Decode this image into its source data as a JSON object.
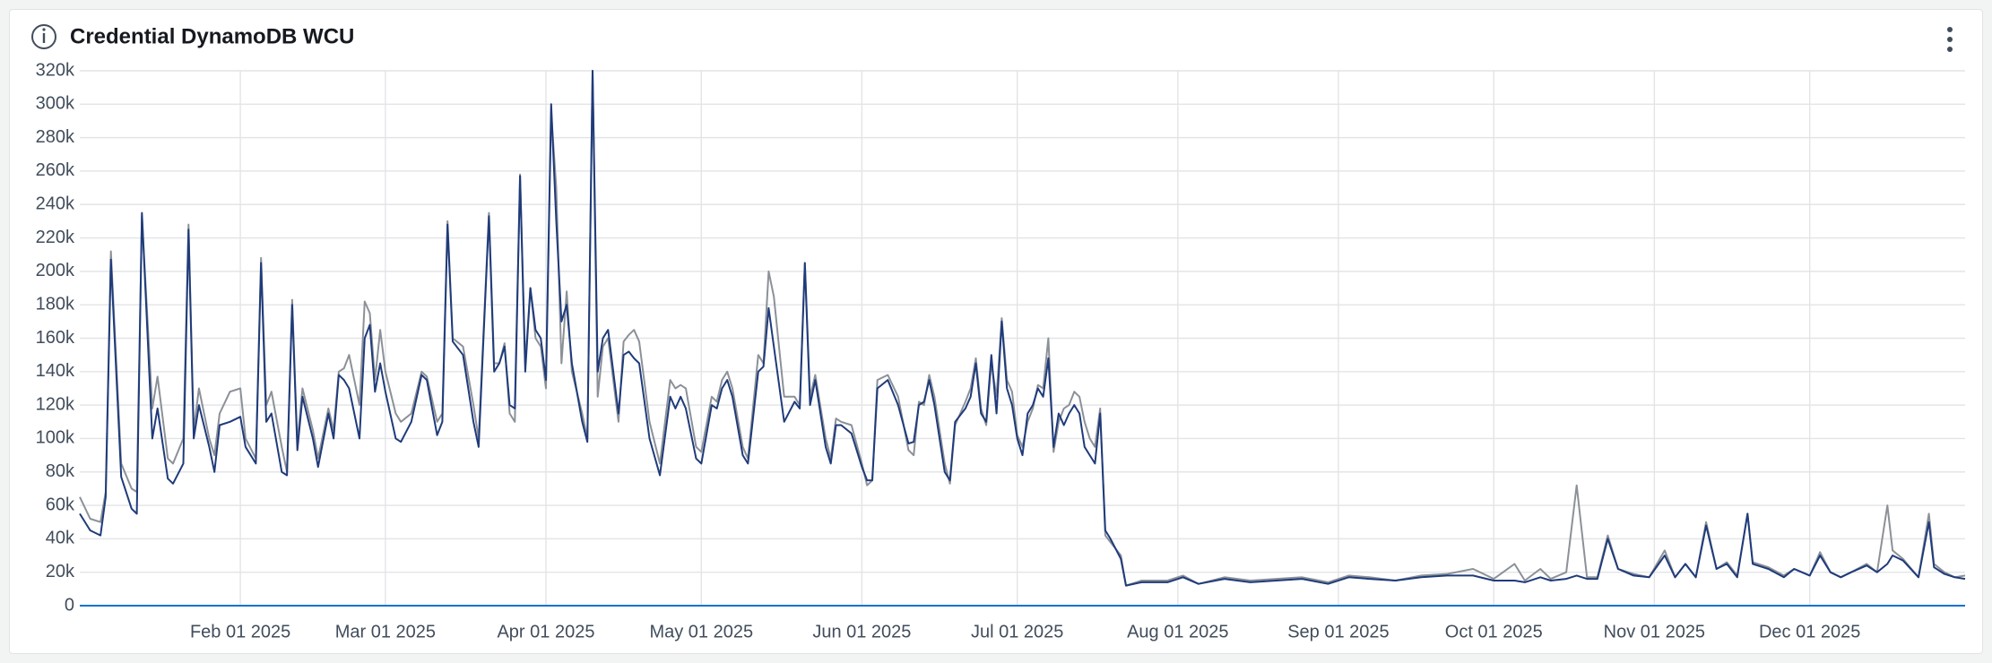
{
  "chart_data": {
    "type": "line",
    "title": "Credential DynamoDB WCU",
    "x": [
      "2025-01-01",
      "2025-01-03",
      "2025-01-05",
      "2025-01-06",
      "2025-01-07",
      "2025-01-09",
      "2025-01-11",
      "2025-01-12",
      "2025-01-13",
      "2025-01-15",
      "2025-01-16",
      "2025-01-18",
      "2025-01-19",
      "2025-01-21",
      "2025-01-22",
      "2025-01-23",
      "2025-01-24",
      "2025-01-26",
      "2025-01-27",
      "2025-01-28",
      "2025-01-30",
      "2025-02-01",
      "2025-02-02",
      "2025-02-04",
      "2025-02-05",
      "2025-02-06",
      "2025-02-07",
      "2025-02-09",
      "2025-02-10",
      "2025-02-11",
      "2025-02-12",
      "2025-02-13",
      "2025-02-15",
      "2025-02-16",
      "2025-02-18",
      "2025-02-19",
      "2025-02-20",
      "2025-02-21",
      "2025-02-22",
      "2025-02-24",
      "2025-02-25",
      "2025-02-26",
      "2025-02-27",
      "2025-02-28",
      "2025-03-01",
      "2025-03-03",
      "2025-03-04",
      "2025-03-06",
      "2025-03-08",
      "2025-03-09",
      "2025-03-11",
      "2025-03-12",
      "2025-03-13",
      "2025-03-14",
      "2025-03-16",
      "2025-03-18",
      "2025-03-19",
      "2025-03-21",
      "2025-03-22",
      "2025-03-23",
      "2025-03-24",
      "2025-03-25",
      "2025-03-26",
      "2025-03-27",
      "2025-03-28",
      "2025-03-29",
      "2025-03-30",
      "2025-03-31",
      "2025-04-01",
      "2025-04-02",
      "2025-04-03",
      "2025-04-04",
      "2025-04-05",
      "2025-04-06",
      "2025-04-08",
      "2025-04-09",
      "2025-04-10",
      "2025-04-11",
      "2025-04-12",
      "2025-04-13",
      "2025-04-14",
      "2025-04-15",
      "2025-04-16",
      "2025-04-17",
      "2025-04-18",
      "2025-04-19",
      "2025-04-21",
      "2025-04-23",
      "2025-04-25",
      "2025-04-26",
      "2025-04-27",
      "2025-04-28",
      "2025-04-30",
      "2025-05-01",
      "2025-05-03",
      "2025-05-04",
      "2025-05-05",
      "2025-05-06",
      "2025-05-07",
      "2025-05-09",
      "2025-05-10",
      "2025-05-12",
      "2025-05-13",
      "2025-05-14",
      "2025-05-15",
      "2025-05-17",
      "2025-05-19",
      "2025-05-20",
      "2025-05-21",
      "2025-05-22",
      "2025-05-23",
      "2025-05-25",
      "2025-05-26",
      "2025-05-27",
      "2025-05-28",
      "2025-05-30",
      "2025-06-01",
      "2025-06-02",
      "2025-06-03",
      "2025-06-04",
      "2025-06-06",
      "2025-06-08",
      "2025-06-10",
      "2025-06-11",
      "2025-06-12",
      "2025-06-13",
      "2025-06-14",
      "2025-06-15",
      "2025-06-17",
      "2025-06-18",
      "2025-06-19",
      "2025-06-21",
      "2025-06-22",
      "2025-06-23",
      "2025-06-24",
      "2025-06-25",
      "2025-06-26",
      "2025-06-27",
      "2025-06-28",
      "2025-06-29",
      "2025-06-30",
      "2025-07-01",
      "2025-07-02",
      "2025-07-03",
      "2025-07-04",
      "2025-07-05",
      "2025-07-06",
      "2025-07-07",
      "2025-07-08",
      "2025-07-09",
      "2025-07-10",
      "2025-07-11",
      "2025-07-12",
      "2025-07-13",
      "2025-07-14",
      "2025-07-15",
      "2025-07-16",
      "2025-07-17",
      "2025-07-18",
      "2025-07-19",
      "2025-07-21",
      "2025-07-22",
      "2025-07-25",
      "2025-07-30",
      "2025-08-02",
      "2025-08-05",
      "2025-08-10",
      "2025-08-15",
      "2025-08-20",
      "2025-08-25",
      "2025-08-30",
      "2025-09-03",
      "2025-09-07",
      "2025-09-12",
      "2025-09-17",
      "2025-09-22",
      "2025-09-27",
      "2025-10-01",
      "2025-10-05",
      "2025-10-07",
      "2025-10-10",
      "2025-10-12",
      "2025-10-15",
      "2025-10-17",
      "2025-10-19",
      "2025-10-21",
      "2025-10-23",
      "2025-10-25",
      "2025-10-28",
      "2025-10-31",
      "2025-11-03",
      "2025-11-05",
      "2025-11-07",
      "2025-11-09",
      "2025-11-11",
      "2025-11-13",
      "2025-11-15",
      "2025-11-17",
      "2025-11-19",
      "2025-11-20",
      "2025-11-23",
      "2025-11-26",
      "2025-11-28",
      "2025-12-01",
      "2025-12-03",
      "2025-12-05",
      "2025-12-07",
      "2025-12-09",
      "2025-12-12",
      "2025-12-14",
      "2025-12-16",
      "2025-12-17",
      "2025-12-19",
      "2025-12-22",
      "2025-12-24",
      "2025-12-25",
      "2025-12-27",
      "2025-12-29",
      "2025-12-31"
    ],
    "series": [
      {
        "color": "#8c9198",
        "values": [
          65000,
          52000,
          50000,
          68000,
          212000,
          85000,
          70000,
          68000,
          233000,
          118000,
          137000,
          88000,
          85000,
          100000,
          228000,
          105000,
          130000,
          100000,
          90000,
          115000,
          128000,
          130000,
          100000,
          88000,
          208000,
          120000,
          128000,
          95000,
          80000,
          183000,
          97000,
          130000,
          105000,
          88000,
          118000,
          105000,
          140000,
          142000,
          150000,
          120000,
          182000,
          175000,
          135000,
          165000,
          140000,
          115000,
          110000,
          115000,
          140000,
          137000,
          110000,
          115000,
          230000,
          160000,
          155000,
          120000,
          100000,
          235000,
          145000,
          145000,
          157000,
          115000,
          110000,
          258000,
          145000,
          190000,
          160000,
          155000,
          130000,
          295000,
          250000,
          145000,
          188000,
          140000,
          115000,
          100000,
          320000,
          125000,
          155000,
          160000,
          135000,
          110000,
          158000,
          162000,
          165000,
          158000,
          110000,
          85000,
          135000,
          130000,
          132000,
          130000,
          95000,
          92000,
          125000,
          122000,
          135000,
          140000,
          130000,
          95000,
          88000,
          150000,
          145000,
          200000,
          185000,
          125000,
          125000,
          120000,
          205000,
          125000,
          138000,
          100000,
          88000,
          112000,
          110000,
          108000,
          85000,
          72000,
          75000,
          135000,
          138000,
          125000,
          93000,
          90000,
          122000,
          120000,
          138000,
          125000,
          85000,
          73000,
          108000,
          122000,
          130000,
          148000,
          118000,
          108000,
          145000,
          125000,
          172000,
          135000,
          128000,
          102000,
          95000,
          110000,
          118000,
          132000,
          130000,
          160000,
          92000,
          110000,
          118000,
          120000,
          128000,
          125000,
          110000,
          100000,
          95000,
          118000,
          42000,
          38000,
          30000,
          12000,
          15000,
          15000,
          18000,
          13000,
          17000,
          15000,
          16000,
          17000,
          14000,
          18000,
          17000,
          15000,
          18000,
          19000,
          22000,
          16000,
          25000,
          15000,
          22000,
          16000,
          20000,
          72000,
          17000,
          17000,
          42000,
          22000,
          19000,
          17000,
          33000,
          17000,
          25000,
          17000,
          50000,
          22000,
          26000,
          18000,
          55000,
          26000,
          23000,
          18000,
          22000,
          18000,
          32000,
          20000,
          17000,
          20000,
          25000,
          20000,
          60000,
          33000,
          28000,
          17000,
          55000,
          25000,
          20000,
          17000,
          18000
        ]
      },
      {
        "color": "#1f3b7a",
        "values": [
          55000,
          45000,
          42000,
          65000,
          207000,
          77000,
          58000,
          55000,
          235000,
          100000,
          118000,
          76000,
          73000,
          85000,
          225000,
          100000,
          120000,
          95000,
          80000,
          108000,
          110000,
          113000,
          95000,
          85000,
          205000,
          110000,
          115000,
          80000,
          78000,
          180000,
          93000,
          125000,
          100000,
          83000,
          115000,
          100000,
          138000,
          135000,
          130000,
          100000,
          160000,
          168000,
          128000,
          145000,
          128000,
          100000,
          98000,
          110000,
          138000,
          135000,
          102000,
          110000,
          228000,
          158000,
          150000,
          110000,
          95000,
          233000,
          140000,
          145000,
          155000,
          120000,
          118000,
          257000,
          140000,
          190000,
          165000,
          160000,
          135000,
          300000,
          230000,
          170000,
          180000,
          145000,
          110000,
          98000,
          320000,
          140000,
          160000,
          165000,
          140000,
          115000,
          150000,
          152000,
          148000,
          145000,
          100000,
          78000,
          125000,
          118000,
          125000,
          118000,
          88000,
          85000,
          120000,
          118000,
          130000,
          135000,
          125000,
          90000,
          85000,
          140000,
          143000,
          178000,
          155000,
          110000,
          122000,
          118000,
          205000,
          120000,
          135000,
          95000,
          85000,
          108000,
          108000,
          103000,
          83000,
          75000,
          75000,
          130000,
          135000,
          120000,
          97000,
          98000,
          120000,
          122000,
          135000,
          120000,
          80000,
          75000,
          110000,
          118000,
          125000,
          145000,
          115000,
          110000,
          150000,
          115000,
          170000,
          130000,
          120000,
          100000,
          90000,
          115000,
          120000,
          130000,
          125000,
          148000,
          95000,
          115000,
          108000,
          115000,
          120000,
          115000,
          95000,
          90000,
          85000,
          115000,
          45000,
          40000,
          28000,
          12000,
          14000,
          14000,
          17000,
          13000,
          16000,
          14000,
          15000,
          16000,
          13000,
          17000,
          16000,
          15000,
          17000,
          18000,
          18000,
          15000,
          15000,
          14000,
          17000,
          15000,
          16000,
          18000,
          16000,
          16000,
          40000,
          22000,
          18000,
          17000,
          30000,
          17000,
          25000,
          17000,
          48000,
          22000,
          25000,
          17000,
          55000,
          25000,
          22000,
          17000,
          22000,
          18000,
          30000,
          20000,
          17000,
          20000,
          24000,
          20000,
          25000,
          30000,
          27000,
          17000,
          50000,
          23000,
          19000,
          17000,
          16000
        ]
      }
    ],
    "xlim": [
      "2025-01-01",
      "2025-12-31"
    ],
    "xticks": [
      {
        "value": "2025-02-01",
        "label": "Feb 01 2025"
      },
      {
        "value": "2025-03-01",
        "label": "Mar 01 2025"
      },
      {
        "value": "2025-04-01",
        "label": "Apr 01 2025"
      },
      {
        "value": "2025-05-01",
        "label": "May 01 2025"
      },
      {
        "value": "2025-06-01",
        "label": "Jun 01 2025"
      },
      {
        "value": "2025-07-01",
        "label": "Jul 01 2025"
      },
      {
        "value": "2025-08-01",
        "label": "Aug 01 2025"
      },
      {
        "value": "2025-09-01",
        "label": "Sep 01 2025"
      },
      {
        "value": "2025-10-01",
        "label": "Oct 01 2025"
      },
      {
        "value": "2025-11-01",
        "label": "Nov 01 2025"
      },
      {
        "value": "2025-12-01",
        "label": "Dec 01 2025"
      }
    ],
    "ylim": [
      0,
      320000
    ],
    "yticks": [
      0,
      {
        "value": 20000,
        "label": "20k"
      },
      {
        "value": 40000,
        "label": "40k"
      },
      {
        "value": 60000,
        "label": "60k"
      },
      {
        "value": 80000,
        "label": "80k"
      },
      {
        "value": 100000,
        "label": "100k"
      },
      {
        "value": 120000,
        "label": "120k"
      },
      {
        "value": 140000,
        "label": "140k"
      },
      {
        "value": 160000,
        "label": "160k"
      },
      {
        "value": 180000,
        "label": "180k"
      },
      {
        "value": 200000,
        "label": "200k"
      },
      {
        "value": 220000,
        "label": "220k"
      },
      {
        "value": 240000,
        "label": "240k"
      },
      {
        "value": 260000,
        "label": "260k"
      },
      {
        "value": 280000,
        "label": "280k"
      },
      {
        "value": 300000,
        "label": "300k"
      },
      {
        "value": 320000,
        "label": "320k"
      }
    ],
    "grid": true
  }
}
